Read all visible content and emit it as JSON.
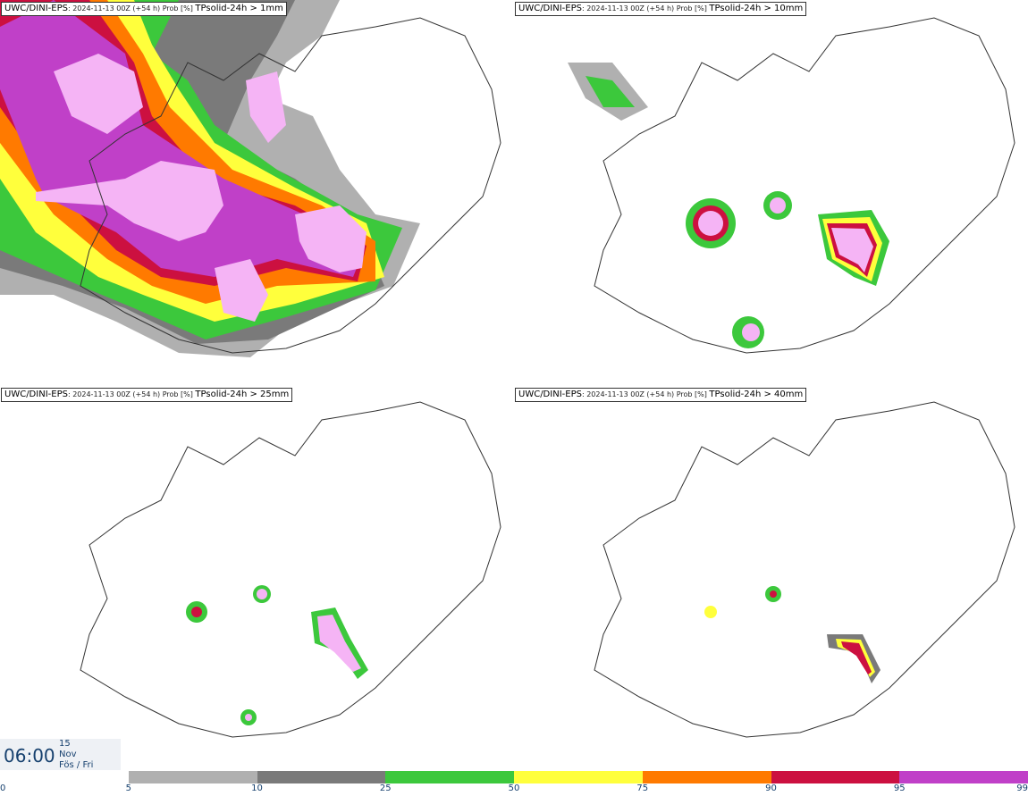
{
  "panels": [
    {
      "model": "UWC/DINI-EPS",
      "meta": ": 2024-11-13 00Z (+54 h) Prob [%] ",
      "field": "TPsolid-24h > 1mm"
    },
    {
      "model": "UWC/DINI-EPS",
      "meta": ": 2024-11-13 00Z (+54 h) Prob [%] ",
      "field": "TPsolid-24h > 10mm"
    },
    {
      "model": "UWC/DINI-EPS",
      "meta": ": 2024-11-13 00Z (+54 h) Prob [%] ",
      "field": "TPsolid-24h > 25mm"
    },
    {
      "model": "UWC/DINI-EPS",
      "meta": ": 2024-11-13 00Z (+54 h) Prob [%] ",
      "field": "TPsolid-24h > 40mm"
    }
  ],
  "timestamp": {
    "time": "06:00",
    "day": "15",
    "month": "Nov",
    "weekday": "Fös / Fri"
  },
  "legend": {
    "ticks": [
      "0",
      "5",
      "10",
      "25",
      "50",
      "75",
      "90",
      "95",
      "99"
    ],
    "colors": [
      "#ffffff",
      "#b0b0b0",
      "#7a7a7a",
      "#3cc83c",
      "#ffff3c",
      "#ff7a00",
      "#cc1040",
      "#c040c8",
      "#f5b4f5"
    ]
  }
}
